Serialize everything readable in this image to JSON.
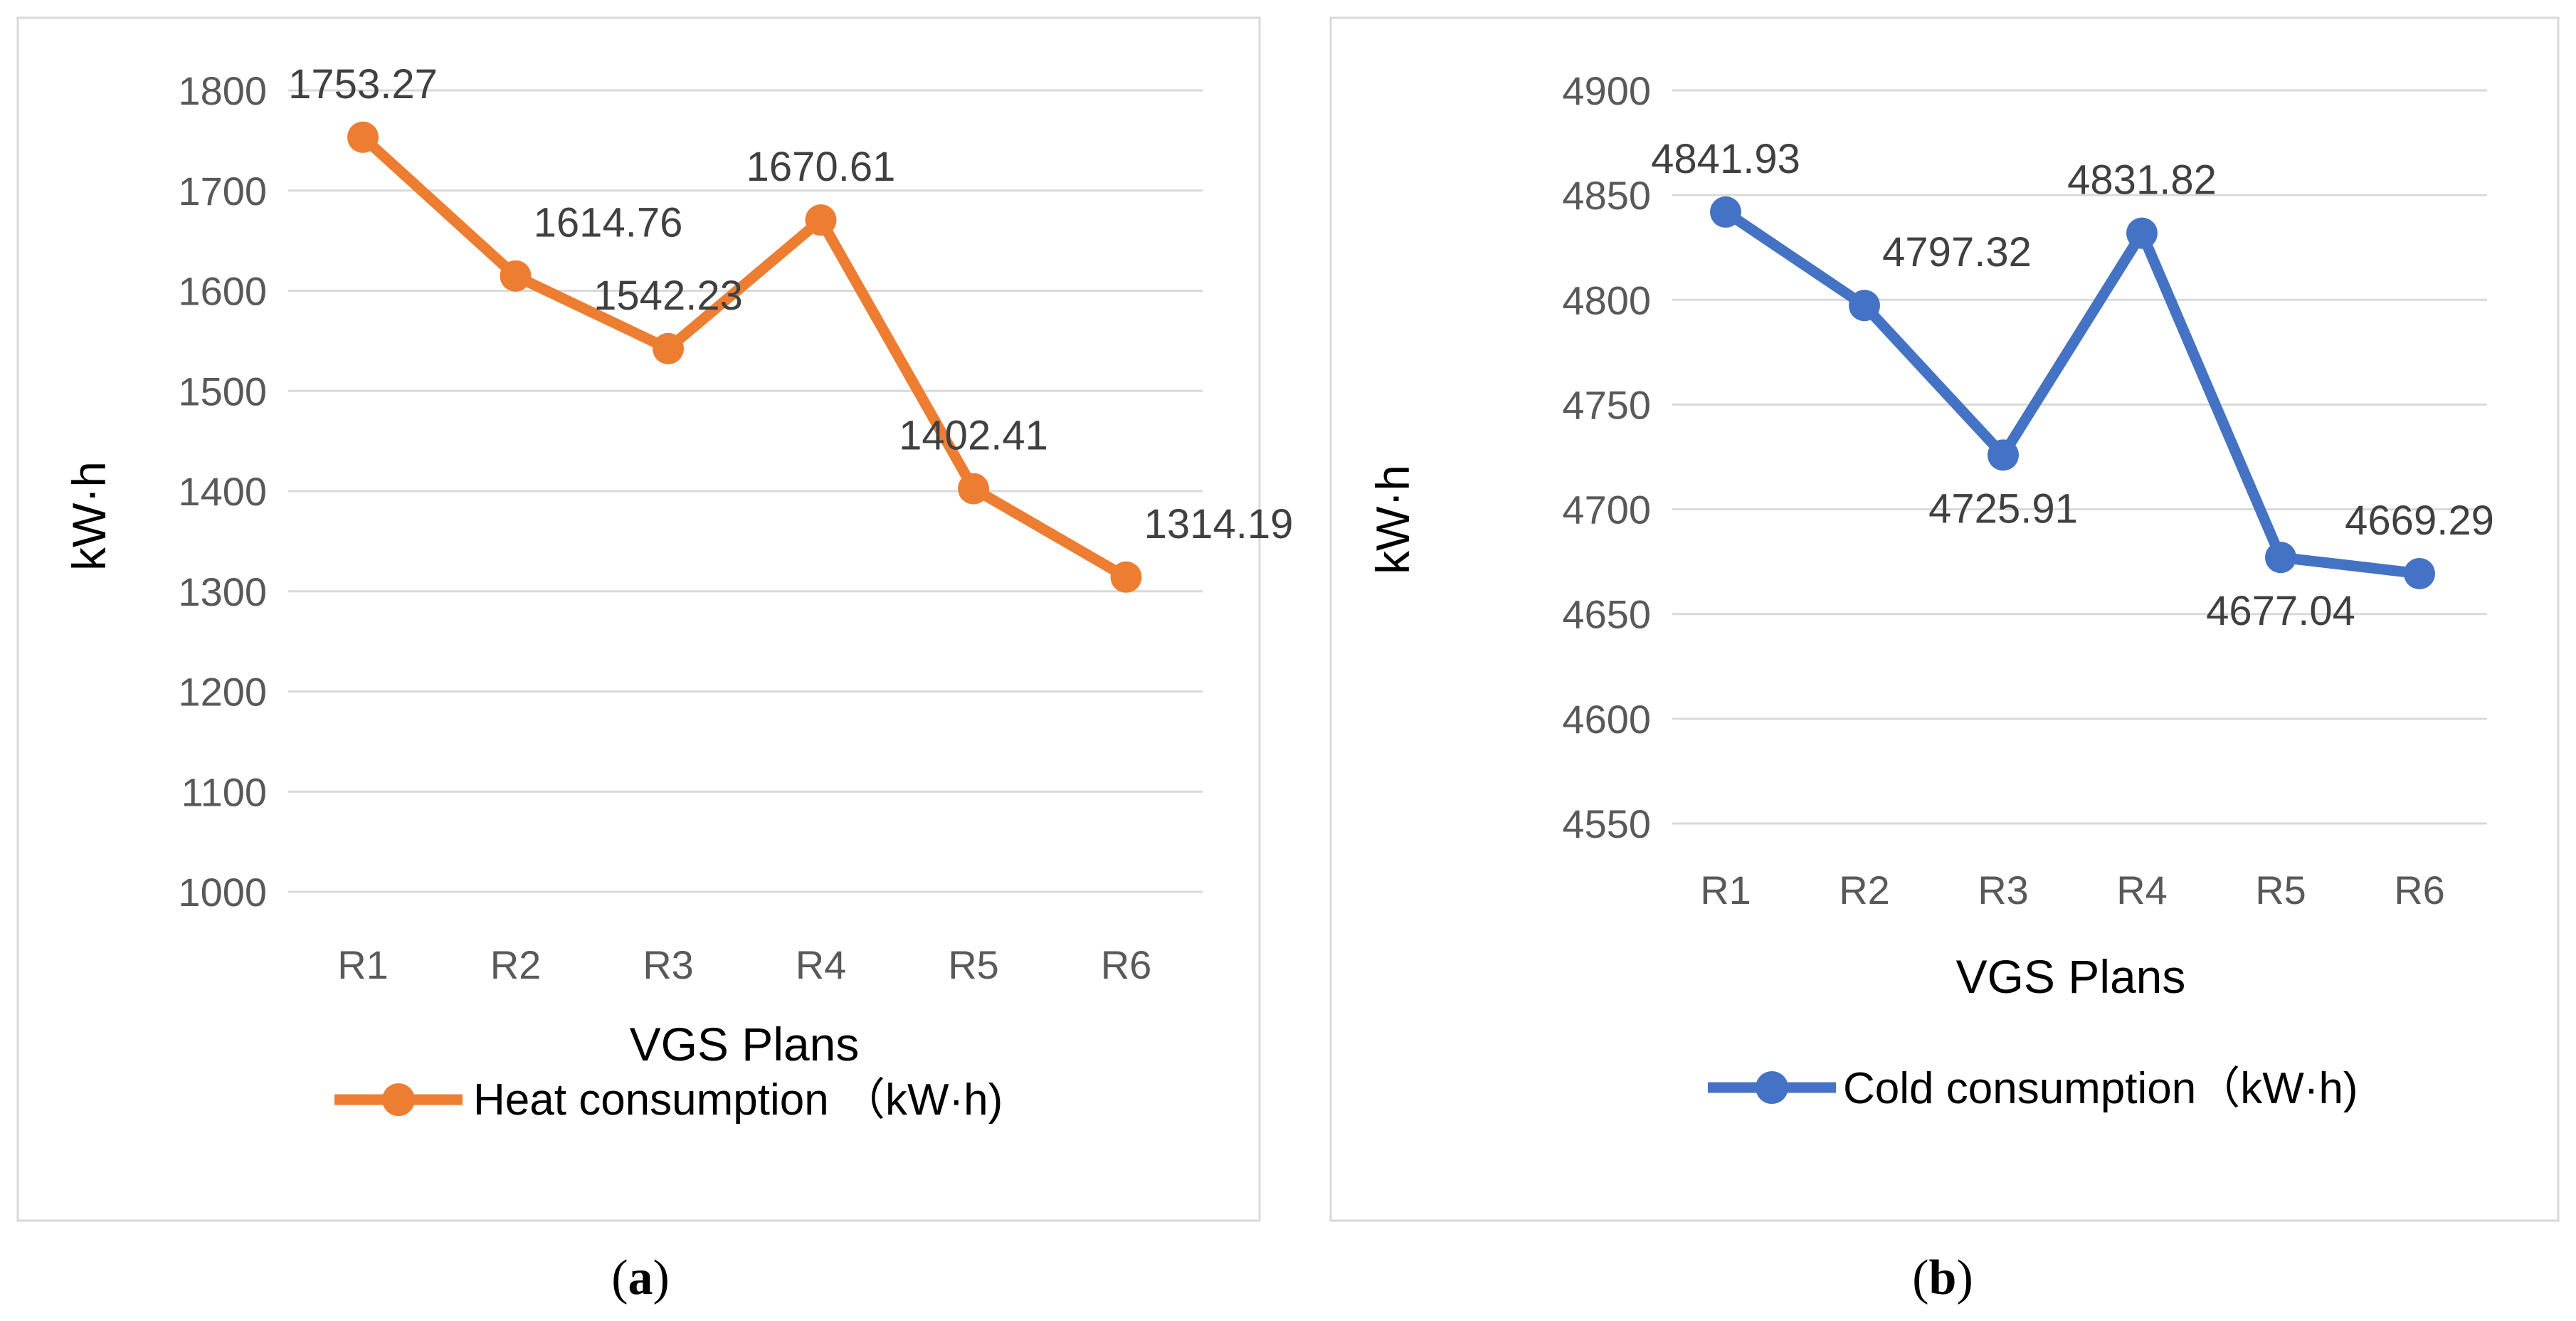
{
  "chart_data": [
    {
      "type": "line",
      "panel": "a",
      "caption_letter": "a",
      "categories": [
        "R1",
        "R2",
        "R3",
        "R4",
        "R5",
        "R6"
      ],
      "series": [
        {
          "name": "Heat consumption （kW·h)",
          "color": "#ed7d31",
          "values": [
            1753.27,
            1614.76,
            1542.23,
            1670.61,
            1402.41,
            1314.19
          ],
          "data_labels": [
            "1753.27",
            "1614.76",
            "1542.23",
            "1670.61",
            "1402.41",
            "1314.19"
          ],
          "label_positions": [
            "above",
            "above-right",
            "above",
            "above",
            "above",
            "above-right"
          ]
        }
      ],
      "xlabel": "VGS Plans",
      "ylabel": "kW·h",
      "ylim": [
        1000,
        1800
      ],
      "yticks": [
        1000,
        1100,
        1200,
        1300,
        1400,
        1500,
        1600,
        1700,
        1800
      ],
      "grid": true,
      "legend": "bottom"
    },
    {
      "type": "line",
      "panel": "b",
      "caption_letter": "b",
      "categories": [
        "R1",
        "R2",
        "R3",
        "R4",
        "R5",
        "R6"
      ],
      "series": [
        {
          "name": "Cold consumption（kW·h)",
          "color": "#4472c4",
          "values": [
            4841.93,
            4797.32,
            4725.91,
            4831.82,
            4677.04,
            4669.29
          ],
          "data_labels": [
            "4841.93",
            "4797.32",
            "4725.91",
            "4831.82",
            "4677.04",
            "4669.29"
          ],
          "label_positions": [
            "above",
            "above-right",
            "below",
            "above",
            "below",
            "above"
          ]
        }
      ],
      "xlabel": "VGS Plans",
      "ylabel": "kW·h",
      "ylim": [
        4550,
        4900
      ],
      "yticks": [
        4550,
        4600,
        4650,
        4700,
        4750,
        4800,
        4850,
        4900
      ],
      "grid": true,
      "legend": "bottom"
    }
  ]
}
